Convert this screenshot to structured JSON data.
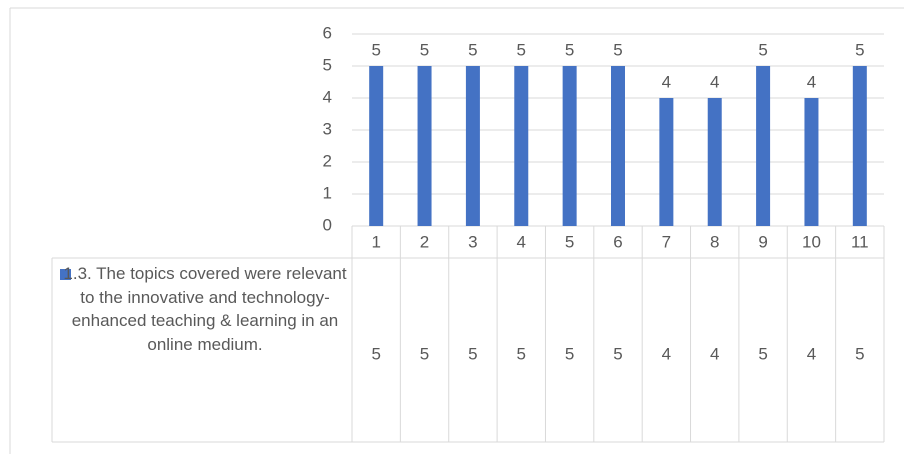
{
  "chart_data": {
    "type": "bar",
    "categories": [
      "1",
      "2",
      "3",
      "4",
      "5",
      "6",
      "7",
      "8",
      "9",
      "10",
      "11"
    ],
    "series": [
      {
        "name": "1.3. The topics covered were relevant to the innovative and technology-enhanced teaching & learning in an online medium.",
        "color": "#4472c4",
        "values": [
          5,
          5,
          5,
          5,
          5,
          5,
          4,
          4,
          5,
          4,
          5
        ]
      }
    ],
    "ylim": [
      0,
      6
    ],
    "yticks": [
      0,
      1,
      2,
      3,
      4,
      5,
      6
    ],
    "grid": true,
    "data_table": true
  }
}
